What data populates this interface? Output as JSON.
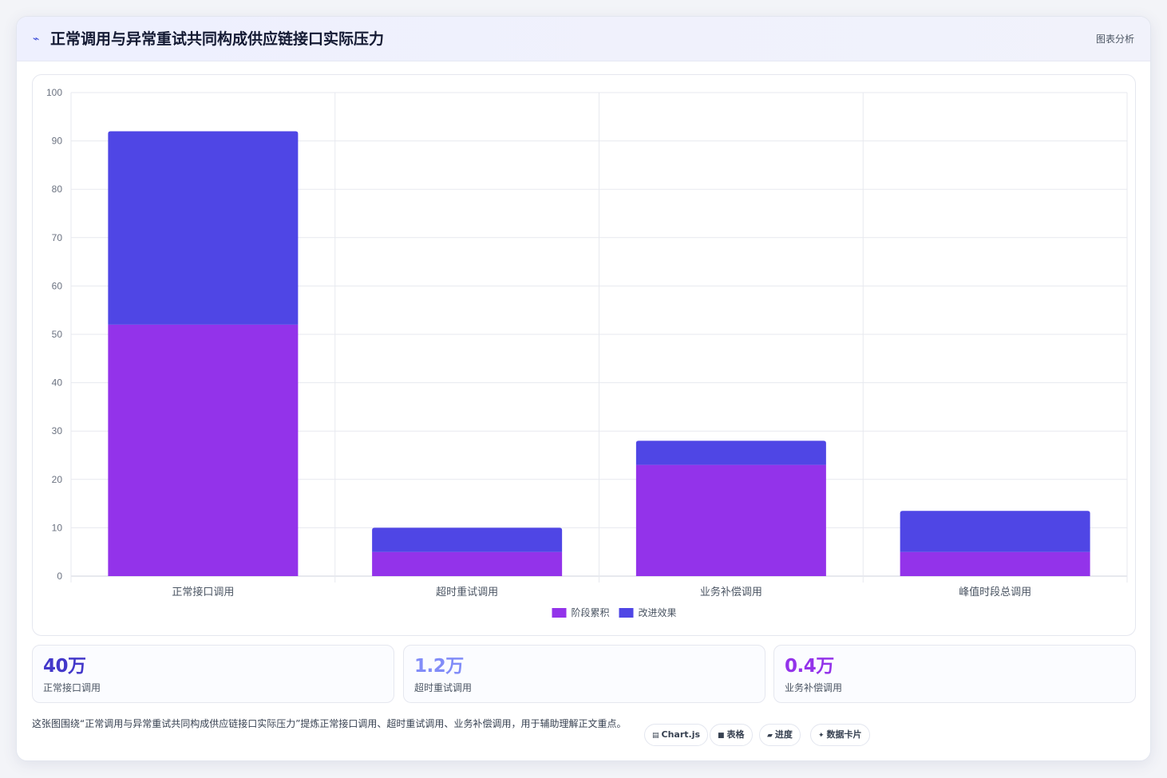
{
  "header": {
    "icon": "line-chart-icon",
    "title": "正常调用与异常重试共同构成供应链接口实际压力",
    "tag": "图表分析"
  },
  "chart_data": {
    "type": "bar",
    "stacked": true,
    "categories": [
      "正常接口调用",
      "超时重试调用",
      "业务补偿调用",
      "峰值时段总调用"
    ],
    "series": [
      {
        "name": "阶段累积",
        "color": "#9333ea",
        "values": [
          52,
          5,
          23,
          5
        ]
      },
      {
        "name": "改进效果",
        "color": "#4f46e5",
        "values": [
          40,
          5,
          5,
          8.5
        ]
      }
    ],
    "ylim": [
      0,
      100
    ],
    "yticks": [
      0,
      10,
      20,
      30,
      40,
      50,
      60,
      70,
      80,
      90,
      100
    ],
    "grid": true,
    "legend_position": "bottom"
  },
  "stats": [
    {
      "value": "40万",
      "label": "正常接口调用",
      "color": "#4338ca"
    },
    {
      "value": "1.2万",
      "label": "超时重试调用",
      "color": "#818cf8"
    },
    {
      "value": "0.4万",
      "label": "业务补偿调用",
      "color": "#9333ea"
    }
  ],
  "description": "这张图围绕“正常调用与异常重试共同构成供应链接口实际压力”提炼正常接口调用、超时重试调用、业务补偿调用，用于辅助理解正文重点。",
  "pills": [
    {
      "icon": "chart-icon",
      "glyph": "▤",
      "label": "Chart.js"
    },
    {
      "icon": "table-icon",
      "glyph": "■",
      "label": "表格"
    },
    {
      "icon": "progress-icon",
      "glyph": "▰",
      "label": "进度"
    },
    {
      "icon": "sparkle-icon",
      "glyph": "✦",
      "label": "数据卡片"
    }
  ]
}
